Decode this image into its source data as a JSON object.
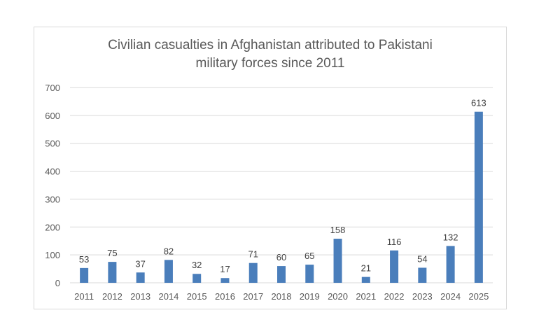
{
  "chart_data": {
    "type": "bar",
    "title_lines": [
      "Civilian casualties in Afghanistan attributed to Pakistani",
      "military forces since 2011"
    ],
    "categories": [
      "2011",
      "2012",
      "2013",
      "2014",
      "2015",
      "2016",
      "2017",
      "2018",
      "2019",
      "2020",
      "2021",
      "2022",
      "2023",
      "2024",
      "2025"
    ],
    "values": [
      53,
      75,
      37,
      82,
      32,
      17,
      71,
      60,
      65,
      158,
      21,
      116,
      54,
      132,
      613
    ],
    "data_labels": [
      "53",
      "75",
      "37",
      "82",
      "32",
      "17",
      "71",
      "60",
      "65",
      "158",
      "21",
      "116",
      "54",
      "132",
      "613"
    ],
    "xlabel": "",
    "ylabel": "",
    "ylim": [
      0,
      700
    ],
    "yticks": [
      "0",
      "100",
      "200",
      "300",
      "400",
      "500",
      "600",
      "700"
    ],
    "grid": true,
    "legend": "none",
    "bar_color": "#4a7ebb",
    "grid_color": "#d9d9d9"
  }
}
